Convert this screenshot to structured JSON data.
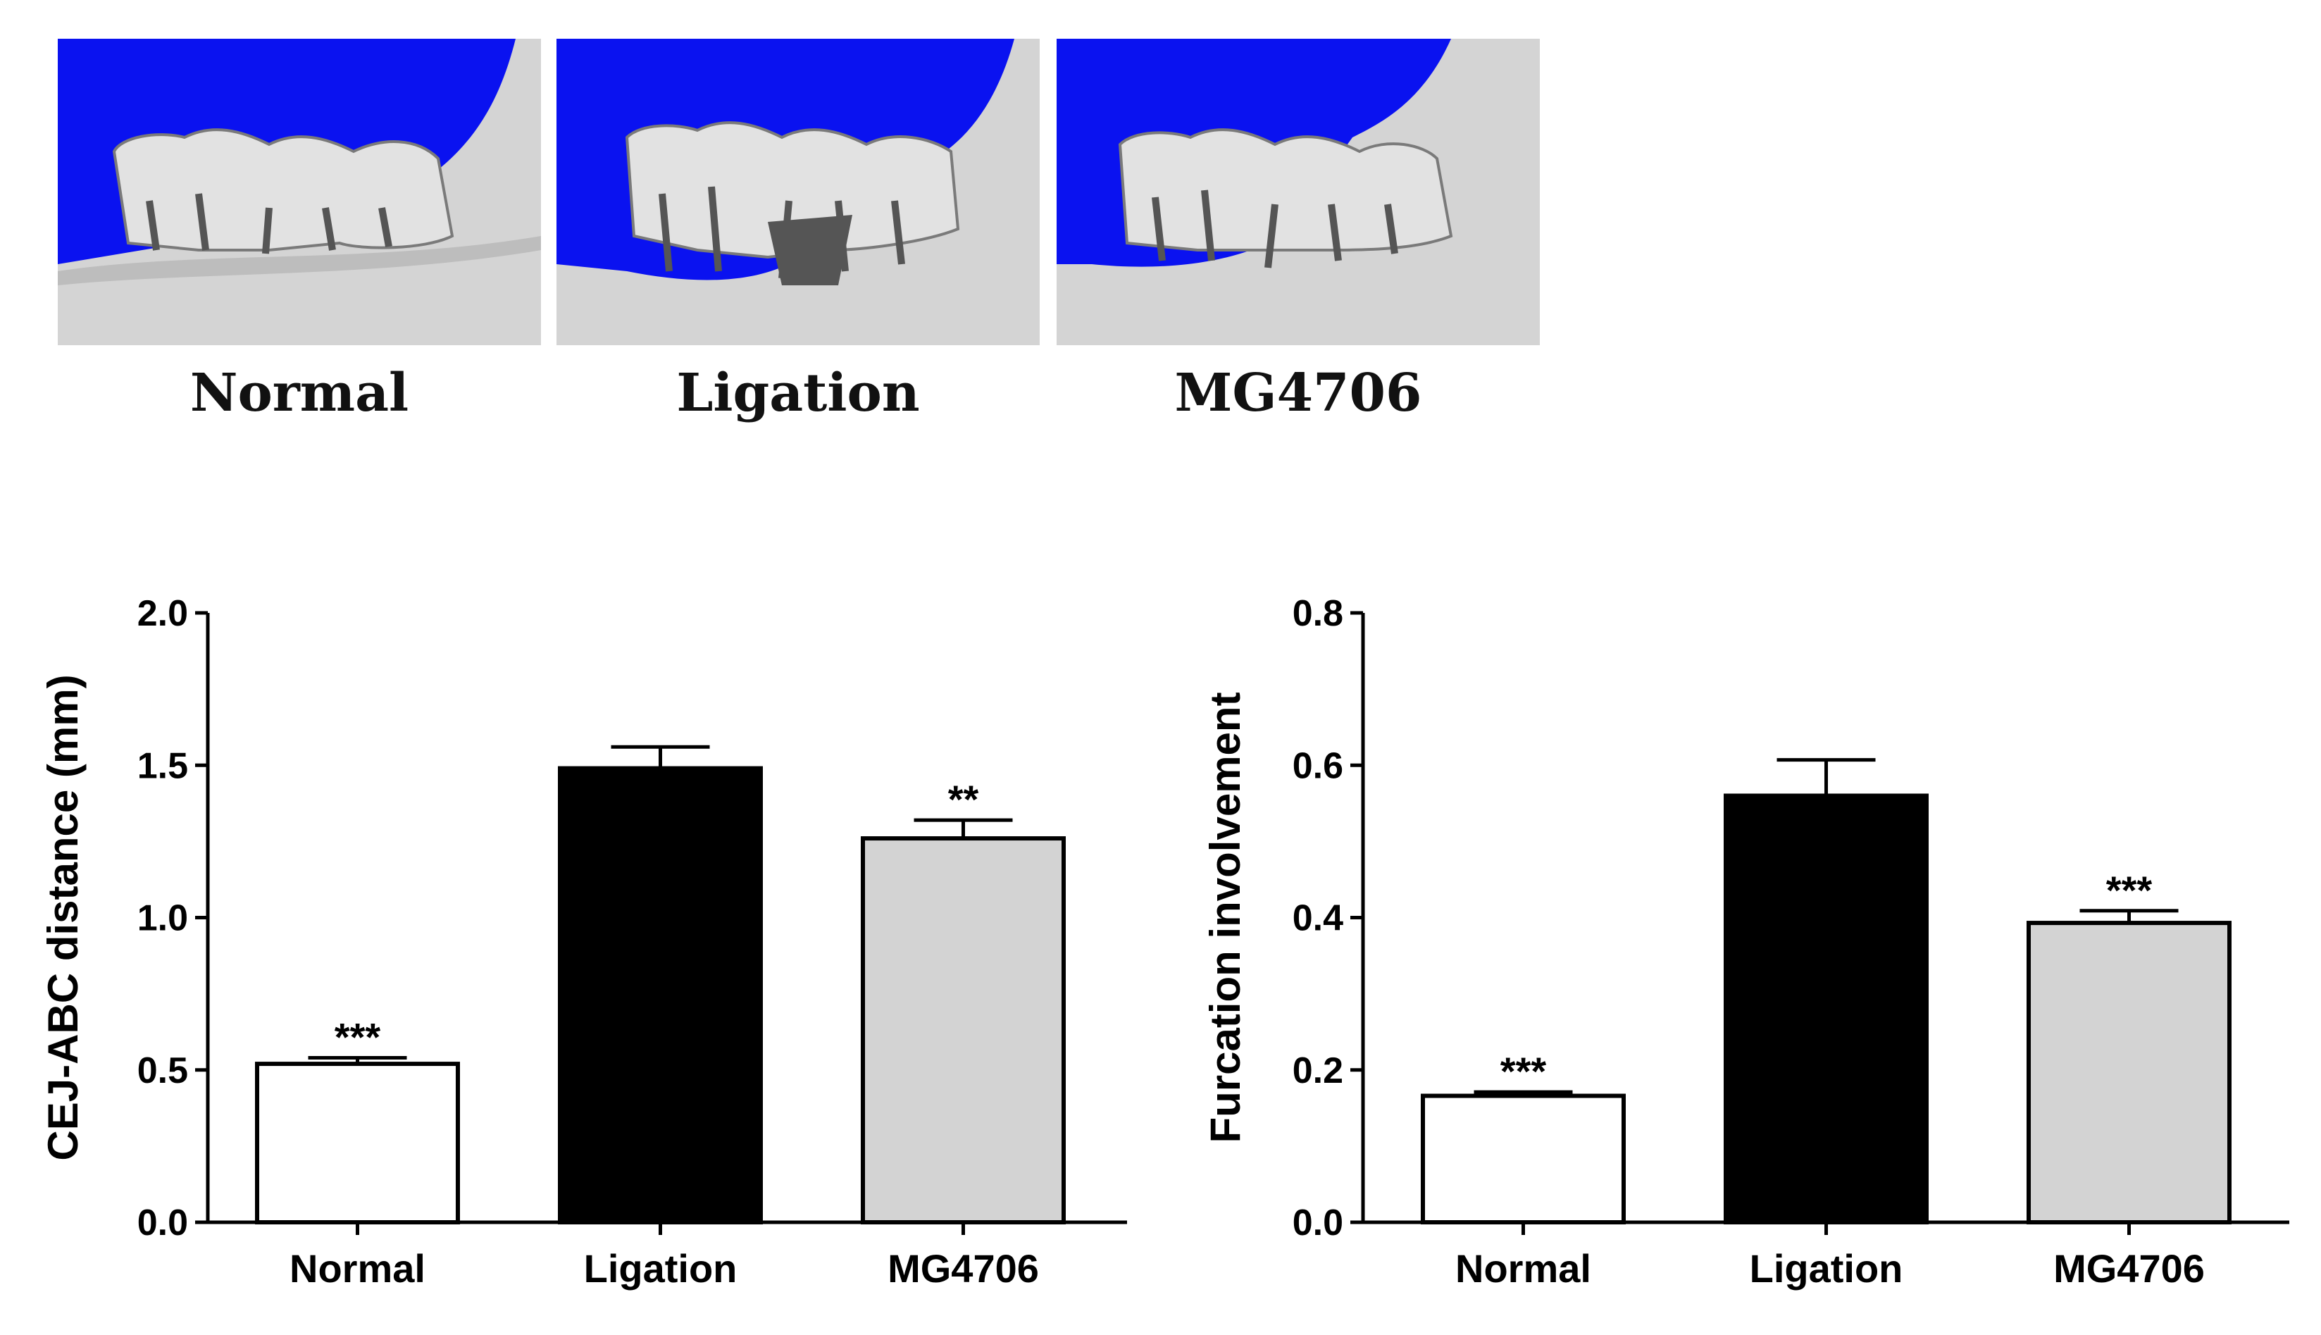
{
  "images": [
    {
      "label": "Normal"
    },
    {
      "label": "Ligation"
    },
    {
      "label": "MG4706"
    }
  ],
  "colors": {
    "background_blue": "#0a12f0",
    "bone": "#d9d9d9",
    "ligation_bar": "#000000",
    "mg4706_bar": "#d3d3d3",
    "normal_bar": "#ffffff"
  },
  "chart_data": [
    {
      "type": "bar",
      "categories": [
        "Normal",
        "Ligation",
        "MG4706"
      ],
      "values": [
        0.52,
        1.49,
        1.26
      ],
      "errors": [
        0.02,
        0.07,
        0.06
      ],
      "annotations": [
        "***",
        "",
        "**"
      ],
      "ylabel": "CEJ-ABC distance (mm)",
      "xlabel": "",
      "ylim": [
        0,
        2.0
      ],
      "yticks": [
        "0.0",
        "0.5",
        "1.0",
        "1.5",
        "2.0"
      ],
      "ytick_values": [
        0,
        0.5,
        1.0,
        1.5,
        2.0
      ],
      "bar_colors": [
        "#ffffff",
        "#000000",
        "#d3d3d3"
      ]
    },
    {
      "type": "bar",
      "categories": [
        "Normal",
        "Ligation",
        "MG4706"
      ],
      "values": [
        0.166,
        0.56,
        0.393
      ],
      "errors": [
        0.005,
        0.047,
        0.016
      ],
      "annotations": [
        "***",
        "",
        "***"
      ],
      "ylabel": "Furcation involvement",
      "xlabel": "",
      "ylim": [
        0,
        0.8
      ],
      "yticks": [
        "0.0",
        "0.2",
        "0.4",
        "0.6",
        "0.8"
      ],
      "ytick_values": [
        0,
        0.2,
        0.4,
        0.6,
        0.8
      ],
      "bar_colors": [
        "#ffffff",
        "#000000",
        "#d3d3d3"
      ]
    }
  ]
}
